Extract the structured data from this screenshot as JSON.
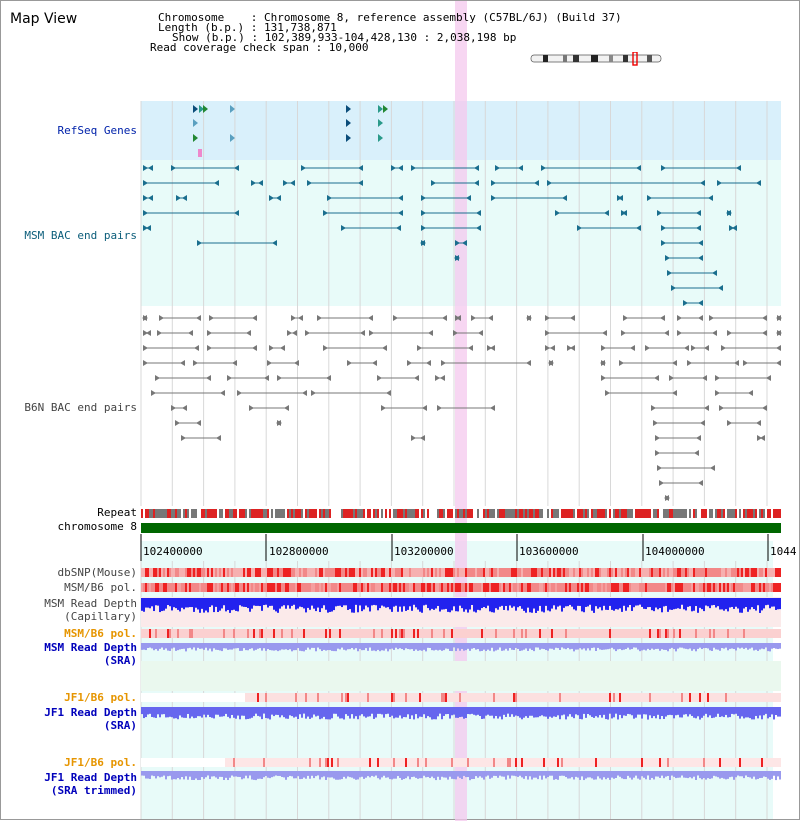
{
  "title": "Map View",
  "info": {
    "chromosome": "Chromosome    : Chromosome 8, reference assembly (C57BL/6J) (Build 37)",
    "length": "Length (b.p.) : 131,738,871",
    "show": "Show (b.p.) : 102,389,933-104,428,130 : 2,038,198 bp",
    "coverage": "Read coverage check span : 10,000"
  },
  "tracks": {
    "refseq": "RefSeq Genes",
    "msm_bac": "MSM BAC end pairs",
    "b6n_bac": "B6N BAC end pairs",
    "repeat": "Repeat",
    "chromosome": "chromosome 8",
    "dbsnp": "dbSNP(Mouse)",
    "msm_b6_pol": "MSM/B6 pol.",
    "msm_depth_cap_1": "MSM Read Depth",
    "msm_depth_cap_2": "(Capillary)",
    "msm_b6_pol_sra": "MSM/B6 pol.",
    "msm_depth_sra_1": "MSM Read Depth",
    "msm_depth_sra_2": "(SRA)",
    "jf1_b6_pol": "JF1/B6 pol.",
    "jf1_depth_1": "JF1 Read Depth",
    "jf1_depth_2": "(SRA)",
    "jf1_b6_pol_trim": "JF1/B6 pol.",
    "jf1_trim_1": "JF1 Read Depth",
    "jf1_trim_2": "(SRA trimmed)"
  },
  "ruler": {
    "ticks": [
      "102400000",
      "102800000",
      "103200000",
      "103600000",
      "104000000",
      "1044"
    ]
  },
  "colors": {
    "refseq_bg": "#d9f0fb",
    "bac_bg": "#e8fbf9",
    "highlight": "#f4c8ee",
    "chromosome": "#006600",
    "depth_capillary": "#2222ee",
    "depth_sra": "#9999ee",
    "depth_jf1": "#6666ee",
    "snp_red": "#ee3333"
  }
}
